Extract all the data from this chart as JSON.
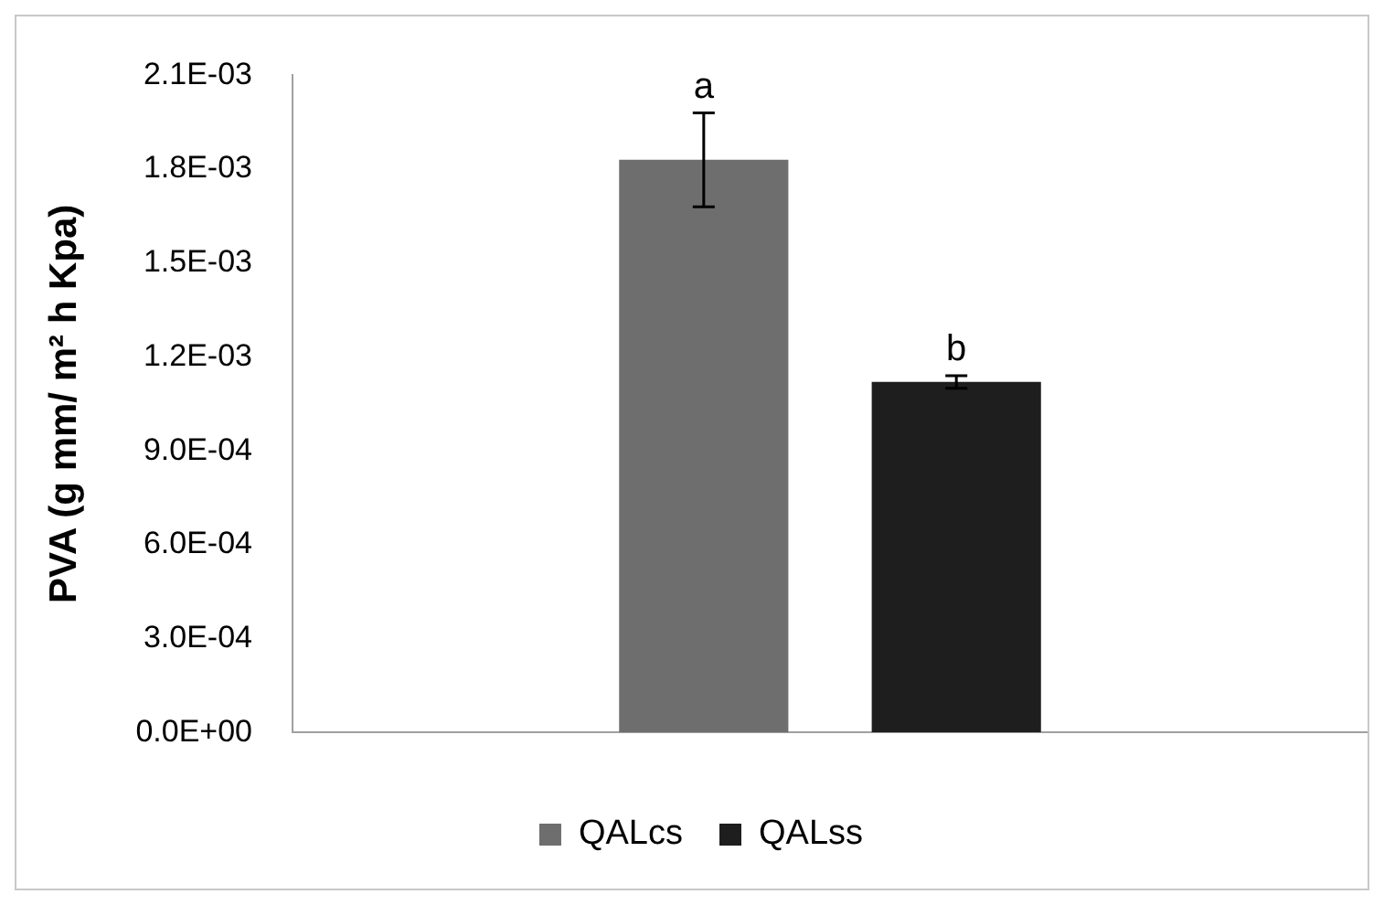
{
  "chart_data": {
    "type": "bar",
    "ylabel": "PVA (g mm/ m² h Kpa)",
    "categories": [
      null
    ],
    "series": [
      {
        "name": "QALcs",
        "color": "#6e6e6e",
        "values": [
          0.00183
        ],
        "errors": [
          0.00015
        ]
      },
      {
        "name": "QALss",
        "color": "#1e1e1e",
        "values": [
          0.00112
        ],
        "errors": [
          2e-05
        ]
      }
    ],
    "ylim": [
      0,
      0.0021
    ],
    "yticks": [
      {
        "value": 0,
        "label": "0.0E+00"
      },
      {
        "value": 0.0003,
        "label": "3.0E-04"
      },
      {
        "value": 0.0006,
        "label": "6.0E-04"
      },
      {
        "value": 0.0009,
        "label": "9.0E-04"
      },
      {
        "value": 0.0012,
        "label": "1.2E-03"
      },
      {
        "value": 0.0015,
        "label": "1.5E-03"
      },
      {
        "value": 0.0018,
        "label": "1.8E-03"
      },
      {
        "value": 0.0021,
        "label": "2.1E-03"
      }
    ],
    "grid": false,
    "legend": "bottom",
    "annotations": [
      {
        "text": "a",
        "y": 0.00198
      },
      {
        "text": "b",
        "y": 0.00114
      }
    ]
  }
}
